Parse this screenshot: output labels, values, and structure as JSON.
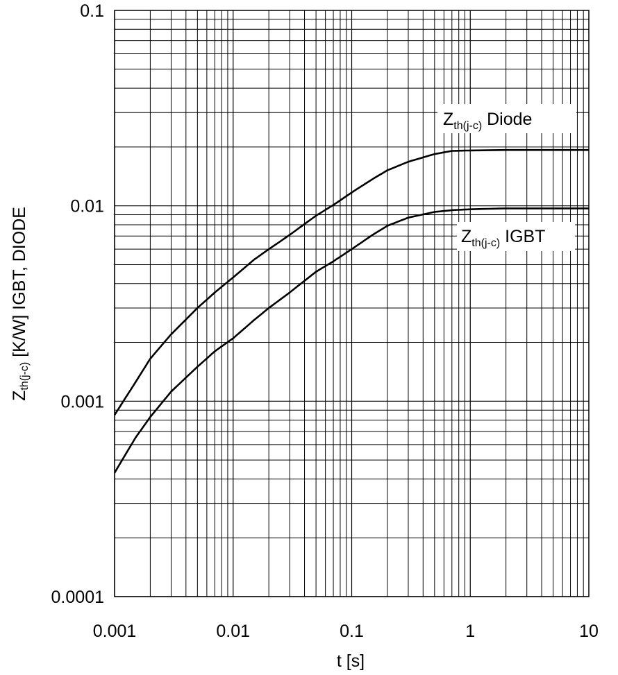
{
  "chart_data": {
    "type": "line",
    "x_scale": "log",
    "y_scale": "log",
    "xlim": [
      0.001,
      10
    ],
    "ylim": [
      0.0001,
      0.1
    ],
    "grid": true,
    "xlabel": "t  [s]",
    "ylabel": {
      "main": "Z",
      "sub": "th(j-c)",
      "rest": "  [K/W]   IGBT, DIODE"
    },
    "x_ticks": [
      "0.001",
      "0.01",
      "0.1",
      "1",
      "10"
    ],
    "y_ticks": [
      "0.1",
      "0.01",
      "0.001",
      "0.0001"
    ],
    "series": [
      {
        "name": {
          "main": "Z",
          "sub": "th(j-c)",
          "rest": " Diode"
        },
        "x": [
          0.001,
          0.0015,
          0.002,
          0.003,
          0.005,
          0.007,
          0.01,
          0.015,
          0.02,
          0.03,
          0.05,
          0.07,
          0.1,
          0.15,
          0.2,
          0.3,
          0.5,
          0.7,
          1,
          2,
          5,
          10
        ],
        "y": [
          0.00085,
          0.00125,
          0.00165,
          0.0022,
          0.003,
          0.0036,
          0.0043,
          0.0053,
          0.006,
          0.0071,
          0.0089,
          0.0101,
          0.0117,
          0.0137,
          0.0152,
          0.0168,
          0.0184,
          0.0191,
          0.0192,
          0.0193,
          0.0193,
          0.0193
        ]
      },
      {
        "name": {
          "main": "Z",
          "sub": "th(j-c)",
          "rest": " IGBT"
        },
        "x": [
          0.001,
          0.0015,
          0.002,
          0.003,
          0.005,
          0.007,
          0.01,
          0.015,
          0.02,
          0.03,
          0.05,
          0.07,
          0.1,
          0.15,
          0.2,
          0.3,
          0.5,
          0.7,
          1,
          2,
          5,
          10
        ],
        "y": [
          0.00043,
          0.00065,
          0.00083,
          0.00112,
          0.0015,
          0.0018,
          0.0021,
          0.0026,
          0.003,
          0.0036,
          0.0046,
          0.0052,
          0.006,
          0.0071,
          0.0079,
          0.0087,
          0.0093,
          0.0095,
          0.0096,
          0.0097,
          0.0097,
          0.0097
        ]
      }
    ]
  }
}
